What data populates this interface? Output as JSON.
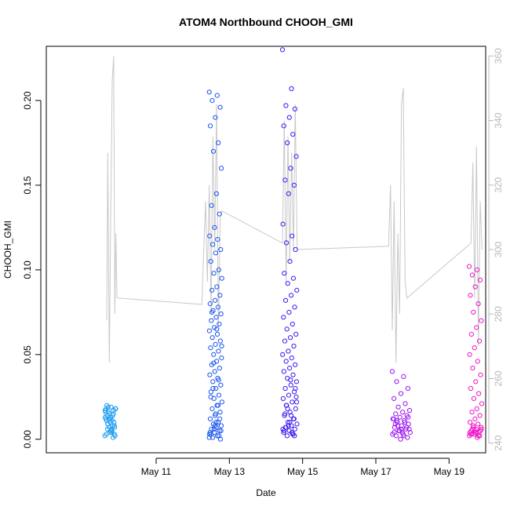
{
  "chart_data": {
    "type": "scatter",
    "title": "ATOM4 Northbound CHOOH_GMI",
    "xlabel": "Date",
    "ylabel": "CHOOH_GMI",
    "x_ticks": [
      "May 11",
      "May 13",
      "May 15",
      "May 17",
      "May 19"
    ],
    "x_tick_values": [
      11,
      13,
      15,
      17,
      19
    ],
    "xlim": [
      8.0,
      20.0
    ],
    "ylim": [
      -0.008,
      0.232
    ],
    "y_ticks": [
      "0.00",
      "0.05",
      "0.10",
      "0.15",
      "0.20"
    ],
    "y_tick_values": [
      0,
      0.05,
      0.1,
      0.15,
      0.2
    ],
    "y2lim": [
      237,
      363
    ],
    "y2_ticks": [
      "240",
      "260",
      "280",
      "300",
      "320",
      "340",
      "360"
    ],
    "y2_tick_values": [
      240,
      260,
      280,
      300,
      320,
      340,
      360
    ],
    "grid": false,
    "series": [
      {
        "color": "#1a9cf0",
        "x_range": [
          9.6,
          9.9
        ],
        "values": [
          0.002,
          0.004,
          0.006,
          0.008,
          0.01,
          0.012,
          0.014,
          0.016,
          0.018,
          0.019,
          0.02,
          0.017,
          0.015,
          0.013,
          0.011,
          0.009,
          0.007,
          0.005,
          0.003,
          0.001,
          0.012,
          0.018,
          0.006,
          0.014,
          0.01,
          0.004,
          0.016,
          0.008,
          0.019,
          0.002,
          0.013,
          0.011,
          0.015,
          0.007,
          0.017,
          0.005,
          0.009,
          0.003,
          0.012,
          0.018
        ]
      },
      {
        "color": "#1a55f0",
        "x_range": [
          12.45,
          12.8
        ],
        "values": [
          0.205,
          0.203,
          0.2,
          0.196,
          0.19,
          0.185,
          0.175,
          0.17,
          0.16,
          0.145,
          0.138,
          0.133,
          0.125,
          0.12,
          0.118,
          0.115,
          0.112,
          0.11,
          0.105,
          0.1,
          0.098,
          0.095,
          0.09,
          0.088,
          0.085,
          0.082,
          0.08,
          0.078,
          0.076,
          0.074,
          0.072,
          0.07,
          0.068,
          0.066,
          0.064,
          0.062,
          0.06,
          0.058,
          0.056,
          0.054,
          0.052,
          0.05,
          0.048,
          0.046,
          0.044,
          0.042,
          0.04,
          0.038,
          0.036,
          0.034,
          0.032,
          0.03,
          0.028,
          0.026,
          0.024,
          0.022,
          0.02,
          0.018,
          0.016,
          0.014,
          0.012,
          0.01,
          0.009,
          0.008,
          0.007,
          0.006,
          0.005,
          0.004,
          0.003,
          0.002,
          0.001,
          0.0,
          0.015,
          0.025,
          0.035,
          0.045,
          0.055,
          0.065,
          0.075,
          0.012,
          0.008,
          0.004,
          0.02,
          0.03,
          0.005,
          0.01,
          0.003,
          0.002,
          0.006,
          0.001
        ]
      },
      {
        "color": "#3a1af0",
        "x_range": [
          14.45,
          14.85
        ],
        "values": [
          0.23,
          0.207,
          0.197,
          0.195,
          0.19,
          0.185,
          0.18,
          0.175,
          0.167,
          0.16,
          0.153,
          0.15,
          0.145,
          0.127,
          0.12,
          0.116,
          0.112,
          0.105,
          0.098,
          0.095,
          0.092,
          0.088,
          0.085,
          0.082,
          0.078,
          0.075,
          0.072,
          0.068,
          0.065,
          0.062,
          0.06,
          0.058,
          0.055,
          0.052,
          0.05,
          0.048,
          0.046,
          0.044,
          0.042,
          0.04,
          0.038,
          0.036,
          0.034,
          0.032,
          0.03,
          0.028,
          0.026,
          0.024,
          0.022,
          0.02,
          0.018,
          0.016,
          0.014,
          0.012,
          0.01,
          0.009,
          0.008,
          0.007,
          0.006,
          0.005,
          0.004,
          0.003,
          0.002,
          0.025,
          0.035,
          0.015,
          0.012,
          0.008,
          0.006,
          0.004,
          0.02,
          0.03,
          0.01,
          0.005,
          0.003,
          0.018,
          0.022,
          0.014,
          0.007,
          0.002
        ]
      },
      {
        "color": "#9a14f0",
        "x_range": [
          17.45,
          17.95
        ],
        "values": [
          0.04,
          0.037,
          0.034,
          0.03,
          0.027,
          0.024,
          0.021,
          0.019,
          0.017,
          0.016,
          0.015,
          0.014,
          0.013,
          0.012,
          0.011,
          0.01,
          0.009,
          0.008,
          0.007,
          0.006,
          0.005,
          0.004,
          0.003,
          0.002,
          0.001,
          0.0,
          0.012,
          0.01,
          0.008,
          0.006,
          0.004,
          0.009,
          0.007,
          0.005,
          0.003,
          0.002,
          0.011,
          0.013,
          0.006,
          0.004
        ]
      },
      {
        "color": "#f014c8",
        "x_range": [
          19.55,
          19.9
        ],
        "values": [
          0.102,
          0.1,
          0.097,
          0.094,
          0.09,
          0.085,
          0.08,
          0.075,
          0.07,
          0.066,
          0.062,
          0.058,
          0.054,
          0.05,
          0.046,
          0.042,
          0.038,
          0.034,
          0.03,
          0.027,
          0.024,
          0.021,
          0.018,
          0.016,
          0.014,
          0.012,
          0.01,
          0.009,
          0.008,
          0.007,
          0.006,
          0.005,
          0.004,
          0.003,
          0.002,
          0.001,
          0.006,
          0.005,
          0.004,
          0.003,
          0.002,
          0.007,
          0.006,
          0.004,
          0.003,
          0.002,
          0.005,
          0.004
        ]
      }
    ],
    "secondary_series": {
      "color": "#c8c8c8",
      "type": "line",
      "points": [
        [
          9.65,
          278
        ],
        [
          9.68,
          330
        ],
        [
          9.72,
          265
        ],
        [
          9.76,
          310
        ],
        [
          9.8,
          352
        ],
        [
          9.84,
          360
        ],
        [
          9.87,
          280
        ],
        [
          9.9,
          305
        ],
        [
          9.93,
          285
        ],
        [
          12.25,
          283
        ],
        [
          12.3,
          300
        ],
        [
          12.35,
          315
        ],
        [
          12.4,
          290
        ],
        [
          12.45,
          320
        ],
        [
          12.5,
          280
        ],
        [
          12.55,
          335
        ],
        [
          12.6,
          300
        ],
        [
          12.65,
          345
        ],
        [
          12.7,
          275
        ],
        [
          12.75,
          310
        ],
        [
          12.8,
          312
        ],
        [
          14.45,
          302
        ],
        [
          14.5,
          340
        ],
        [
          14.55,
          290
        ],
        [
          14.6,
          335
        ],
        [
          14.65,
          296
        ],
        [
          14.7,
          330
        ],
        [
          14.75,
          300
        ],
        [
          14.8,
          345
        ],
        [
          14.85,
          300
        ],
        [
          17.35,
          301
        ],
        [
          17.4,
          320
        ],
        [
          17.45,
          275
        ],
        [
          17.5,
          315
        ],
        [
          17.55,
          265
        ],
        [
          17.6,
          305
        ],
        [
          17.65,
          280
        ],
        [
          17.7,
          345
        ],
        [
          17.75,
          350
        ],
        [
          17.8,
          290
        ],
        [
          17.85,
          285
        ],
        [
          19.6,
          302
        ],
        [
          19.65,
          327
        ],
        [
          19.7,
          285
        ],
        [
          19.75,
          332
        ],
        [
          19.8,
          270
        ],
        [
          19.85,
          315
        ],
        [
          19.9,
          300
        ]
      ]
    }
  }
}
